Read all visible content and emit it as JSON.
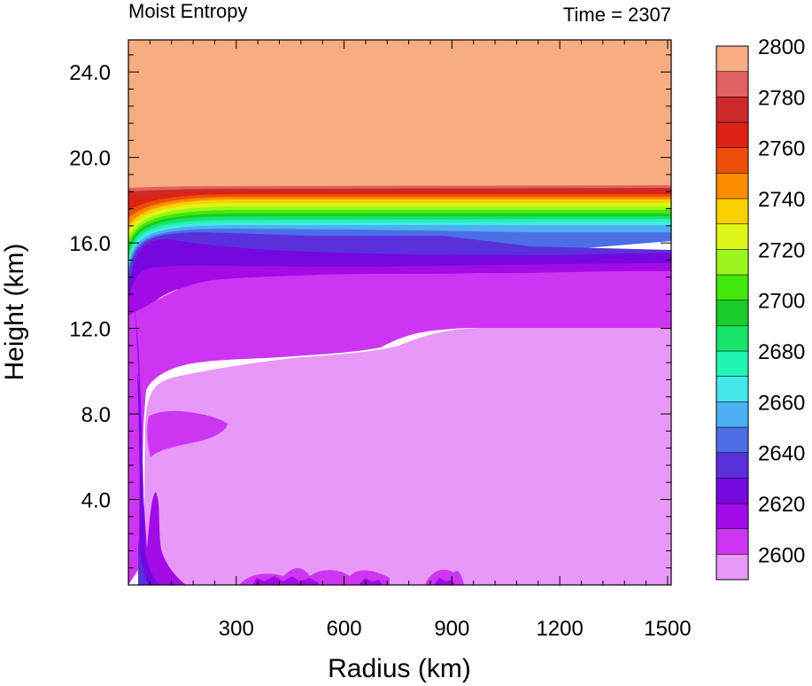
{
  "chart_data": {
    "type": "heatmap",
    "title_left": "Moist Entropy",
    "title_right": "Time = 2307",
    "xlabel": "Radius (km)",
    "ylabel": "Height (km)",
    "xlim": [
      0,
      1510
    ],
    "ylim": [
      0,
      25.5
    ],
    "x_ticks": [
      300,
      600,
      900,
      1200,
      1500
    ],
    "x_tick_labels": [
      "300",
      "600",
      "900",
      "1200",
      "1500"
    ],
    "y_ticks": [
      4,
      8,
      12,
      16,
      20,
      24
    ],
    "y_tick_labels": [
      "4.0",
      "8.0",
      "12.0",
      "16.0",
      "20.0",
      "24.0"
    ],
    "colorbar": {
      "levels": [
        2600,
        2610,
        2620,
        2630,
        2640,
        2650,
        2660,
        2670,
        2680,
        2690,
        2700,
        2710,
        2720,
        2730,
        2740,
        2750,
        2760,
        2770,
        2780,
        2790,
        2800
      ],
      "labels": [
        "2600",
        "2620",
        "2640",
        "2660",
        "2680",
        "2700",
        "2720",
        "2740",
        "2760",
        "2780",
        "2800"
      ],
      "colors": [
        "#e898f8",
        "#cc36f2",
        "#a20ae6",
        "#7508e0",
        "#5a30dc",
        "#4c6ee6",
        "#4cb0f2",
        "#44e8e8",
        "#22f4b4",
        "#18e46a",
        "#18cc2a",
        "#42e80a",
        "#9cf61a",
        "#dcf61a",
        "#fcd000",
        "#fc8c00",
        "#ec4e0a",
        "#dc2212",
        "#cc2a2a",
        "#e06262",
        "#f8ac82"
      ]
    },
    "regions": [
      {
        "level_range": [
          2800,
          2810
        ],
        "description_z_km": [
          18.8,
          25.5
        ]
      },
      {
        "level_range": [
          2600,
          2610
        ],
        "description_z_km": [
          0,
          12.3
        ]
      },
      {
        "level_range": [
          2610,
          2620
        ],
        "description_z_km": [
          12.3,
          15.3
        ]
      },
      {
        "level_range": [
          2620,
          2650
        ],
        "description_z_km": [
          15.3,
          16.5
        ]
      },
      {
        "level_range": [
          2650,
          2800
        ],
        "description_z_km": [
          16.5,
          18.8
        ]
      }
    ]
  }
}
